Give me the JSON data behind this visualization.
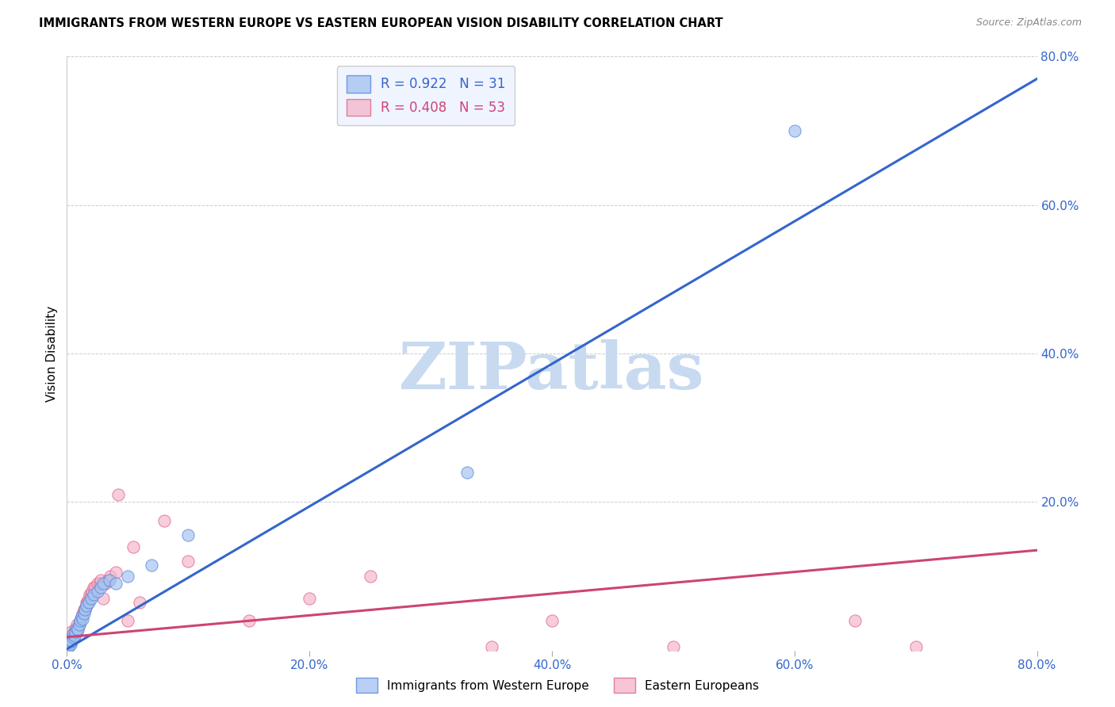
{
  "title": "IMMIGRANTS FROM WESTERN EUROPE VS EASTERN EUROPEAN VISION DISABILITY CORRELATION CHART",
  "source": "Source: ZipAtlas.com",
  "ylabel": "Vision Disability",
  "xlim": [
    0.0,
    0.8
  ],
  "ylim": [
    0.0,
    0.8
  ],
  "x_tick_labels": [
    "0.0%",
    "20.0%",
    "40.0%",
    "60.0%",
    "80.0%"
  ],
  "x_tick_values": [
    0.0,
    0.2,
    0.4,
    0.6,
    0.8
  ],
  "y_tick_labels": [
    "20.0%",
    "40.0%",
    "60.0%",
    "80.0%"
  ],
  "y_tick_values": [
    0.2,
    0.4,
    0.6,
    0.8
  ],
  "blue_R": 0.922,
  "blue_N": 31,
  "pink_R": 0.408,
  "pink_N": 53,
  "blue_color": "#a8c4f0",
  "pink_color": "#f4b8cc",
  "blue_edge_color": "#5588dd",
  "pink_edge_color": "#dd6688",
  "blue_line_color": "#3366cc",
  "pink_line_color": "#cc4477",
  "tick_color": "#3366cc",
  "watermark_text": "ZIPatlas",
  "watermark_color": "#c8daf0",
  "legend_box_color": "#f0f4ff",
  "legend_edge_color": "#cccccc",
  "blue_label": "Immigrants from Western Europe",
  "pink_label": "Eastern Europeans",
  "blue_line_x": [
    0.0,
    0.8
  ],
  "blue_line_y": [
    0.002,
    0.77
  ],
  "pink_line_x": [
    0.0,
    0.8
  ],
  "pink_line_y": [
    0.018,
    0.135
  ],
  "blue_scatter_x": [
    0.001,
    0.002,
    0.003,
    0.003,
    0.004,
    0.005,
    0.005,
    0.006,
    0.007,
    0.008,
    0.009,
    0.01,
    0.011,
    0.012,
    0.013,
    0.014,
    0.015,
    0.016,
    0.018,
    0.02,
    0.022,
    0.025,
    0.028,
    0.03,
    0.035,
    0.04,
    0.05,
    0.07,
    0.1,
    0.33,
    0.6
  ],
  "blue_scatter_y": [
    0.005,
    0.01,
    0.008,
    0.015,
    0.012,
    0.018,
    0.022,
    0.02,
    0.025,
    0.03,
    0.028,
    0.035,
    0.04,
    0.045,
    0.042,
    0.05,
    0.055,
    0.06,
    0.065,
    0.07,
    0.075,
    0.08,
    0.085,
    0.09,
    0.095,
    0.09,
    0.1,
    0.115,
    0.155,
    0.24,
    0.7
  ],
  "pink_scatter_x": [
    0.001,
    0.001,
    0.002,
    0.002,
    0.003,
    0.003,
    0.004,
    0.004,
    0.005,
    0.005,
    0.006,
    0.007,
    0.007,
    0.008,
    0.008,
    0.009,
    0.01,
    0.011,
    0.012,
    0.013,
    0.014,
    0.015,
    0.016,
    0.016,
    0.017,
    0.018,
    0.019,
    0.02,
    0.021,
    0.022,
    0.023,
    0.025,
    0.027,
    0.028,
    0.03,
    0.032,
    0.034,
    0.036,
    0.04,
    0.042,
    0.05,
    0.055,
    0.06,
    0.08,
    0.1,
    0.15,
    0.2,
    0.25,
    0.35,
    0.4,
    0.5,
    0.65,
    0.7
  ],
  "pink_scatter_y": [
    0.005,
    0.012,
    0.008,
    0.018,
    0.01,
    0.02,
    0.015,
    0.025,
    0.018,
    0.022,
    0.02,
    0.025,
    0.03,
    0.025,
    0.035,
    0.03,
    0.035,
    0.04,
    0.045,
    0.05,
    0.055,
    0.055,
    0.06,
    0.065,
    0.065,
    0.07,
    0.075,
    0.075,
    0.08,
    0.085,
    0.085,
    0.09,
    0.09,
    0.095,
    0.07,
    0.09,
    0.095,
    0.1,
    0.105,
    0.21,
    0.04,
    0.14,
    0.065,
    0.175,
    0.12,
    0.04,
    0.07,
    0.1,
    0.005,
    0.04,
    0.005,
    0.04,
    0.005
  ]
}
